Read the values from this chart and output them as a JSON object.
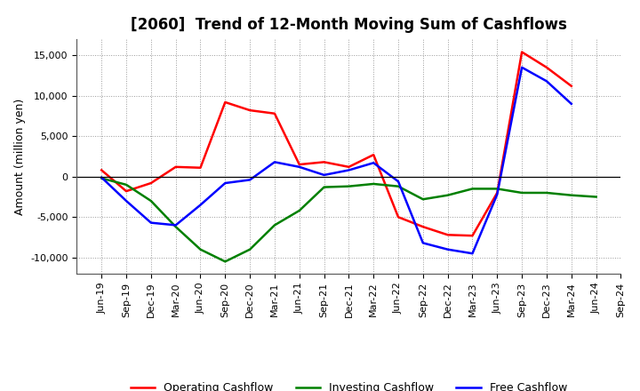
{
  "title": "[2060]  Trend of 12-Month Moving Sum of Cashflows",
  "ylabel": "Amount (million yen)",
  "x_labels": [
    "Jun-19",
    "Sep-19",
    "Dec-19",
    "Mar-20",
    "Jun-20",
    "Sep-20",
    "Dec-20",
    "Mar-21",
    "Jun-21",
    "Sep-21",
    "Dec-21",
    "Mar-22",
    "Jun-22",
    "Sep-22",
    "Dec-22",
    "Mar-23",
    "Jun-23",
    "Sep-23",
    "Dec-23",
    "Mar-24",
    "Jun-24",
    "Sep-24"
  ],
  "operating": [
    800,
    -1800,
    -800,
    1200,
    1100,
    9200,
    8200,
    7800,
    1500,
    1800,
    1200,
    2700,
    -5000,
    -6200,
    -7200,
    -7300,
    -2000,
    15400,
    13500,
    11200,
    null,
    null
  ],
  "investing": [
    -200,
    -1000,
    -3000,
    -6200,
    -9000,
    -10500,
    -9000,
    -6000,
    -4200,
    -1300,
    -1200,
    -900,
    -1200,
    -2800,
    -2300,
    -1500,
    -1500,
    -2000,
    -2000,
    -2300,
    -2500,
    null
  ],
  "free": [
    -100,
    -3000,
    -5700,
    -6000,
    -3500,
    -800,
    -400,
    1800,
    1200,
    200,
    800,
    1700,
    -600,
    -8200,
    -9000,
    -9500,
    -2200,
    13500,
    11800,
    9000,
    null,
    null
  ],
  "operating_color": "#ff0000",
  "investing_color": "#008000",
  "free_color": "#0000ff",
  "ylim": [
    -12000,
    17000
  ],
  "yticks": [
    -10000,
    -5000,
    0,
    5000,
    10000,
    15000
  ],
  "bg_color": "#ffffff",
  "plot_bg_color": "#ffffff",
  "title_fontsize": 12,
  "ylabel_fontsize": 9,
  "tick_fontsize": 8,
  "legend_fontsize": 9,
  "linewidth": 1.8
}
